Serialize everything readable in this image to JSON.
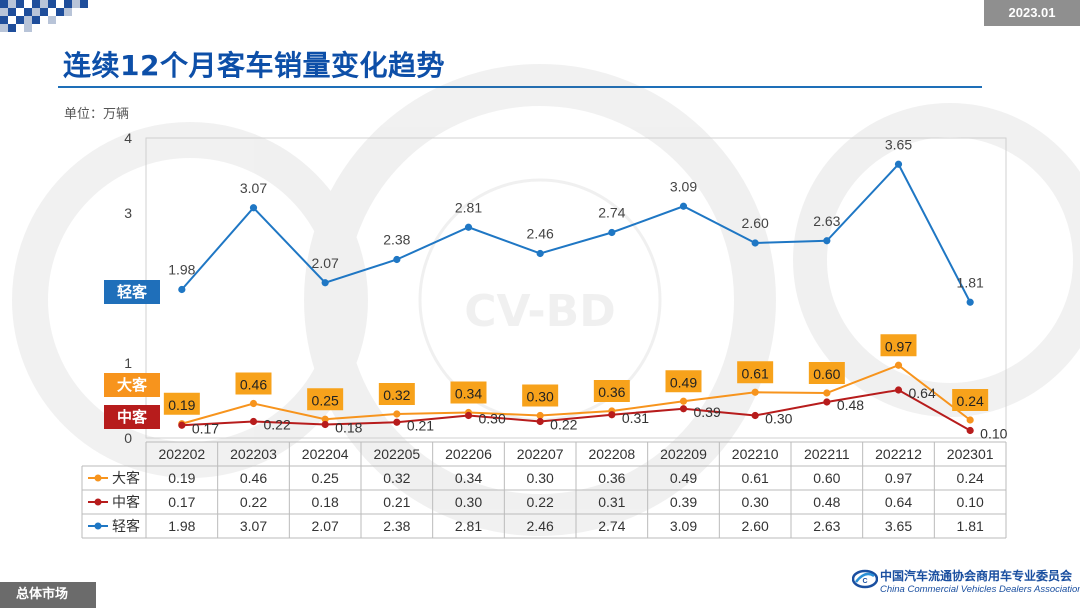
{
  "header": {
    "date_badge": "2023.01",
    "title": "连续12个月客车销量变化趋势",
    "unit": "单位：万辆"
  },
  "footer": {
    "section_tag": "总体市场",
    "org_name_cn": "中国汽车流通协会商用车专业委员会",
    "org_name_en": "China Commercial Vehicles Dealers Association"
  },
  "watermark": {
    "text": "CV-BD"
  },
  "colors": {
    "large": "#f7941d",
    "medium": "#b71c1c",
    "light": "#1f77c4",
    "title": "#0d4fa8",
    "light_label_bg": "#1f6fba"
  },
  "chart_data": {
    "type": "line",
    "ylim": [
      0,
      4
    ],
    "yticks": [
      0,
      1,
      3,
      4
    ],
    "categories": [
      "202202",
      "202203",
      "202204",
      "202205",
      "202206",
      "202207",
      "202208",
      "202209",
      "202210",
      "202211",
      "202212",
      "202301"
    ],
    "series": [
      {
        "name": "大客",
        "color": "#f7941d",
        "values": [
          0.19,
          0.46,
          0.25,
          0.32,
          0.34,
          0.3,
          0.36,
          0.49,
          0.61,
          0.6,
          0.97,
          0.24
        ]
      },
      {
        "name": "中客",
        "color": "#b71c1c",
        "values": [
          0.17,
          0.22,
          0.18,
          0.21,
          0.3,
          0.22,
          0.31,
          0.39,
          0.3,
          0.48,
          0.64,
          0.1
        ]
      },
      {
        "name": "轻客",
        "color": "#1f77c4",
        "values": [
          1.98,
          3.07,
          2.07,
          2.38,
          2.81,
          2.46,
          2.74,
          3.09,
          2.6,
          2.63,
          3.65,
          1.81
        ]
      }
    ],
    "table_values": {
      "大客": [
        "0.19",
        "0.46",
        "0.25",
        "0.32",
        "0.34",
        "0.30",
        "0.36",
        "0.49",
        "0.61",
        "0.60",
        "0.97",
        "0.24"
      ],
      "中客": [
        "0.17",
        "0.22",
        "0.18",
        "0.21",
        "0.30",
        "0.22",
        "0.31",
        "0.39",
        "0.30",
        "0.48",
        "0.64",
        "0.10"
      ],
      "轻客": [
        "1.98",
        "3.07",
        "2.07",
        "2.38",
        "2.81",
        "2.46",
        "2.74",
        "3.09",
        "2.60",
        "2.63",
        "3.65",
        "1.81"
      ]
    },
    "series_tags": [
      "轻客",
      "大客",
      "中客"
    ]
  }
}
